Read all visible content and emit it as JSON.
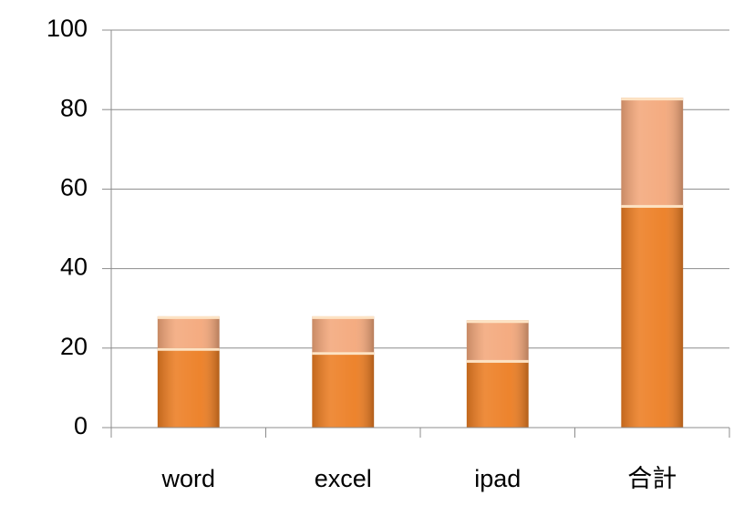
{
  "chart_data": {
    "type": "stacked_bar",
    "categories": [
      "word",
      "excel",
      "ipad",
      "合計"
    ],
    "series": [
      {
        "color": "#ec7d22",
        "values": [
          20,
          19,
          17,
          56
        ]
      },
      {
        "color": "#f3a77a",
        "values": [
          8,
          9,
          10,
          27
        ]
      }
    ],
    "ylim": [
      0,
      100
    ],
    "yticks": [
      0,
      20,
      40,
      60,
      80,
      100
    ],
    "grid": true
  }
}
